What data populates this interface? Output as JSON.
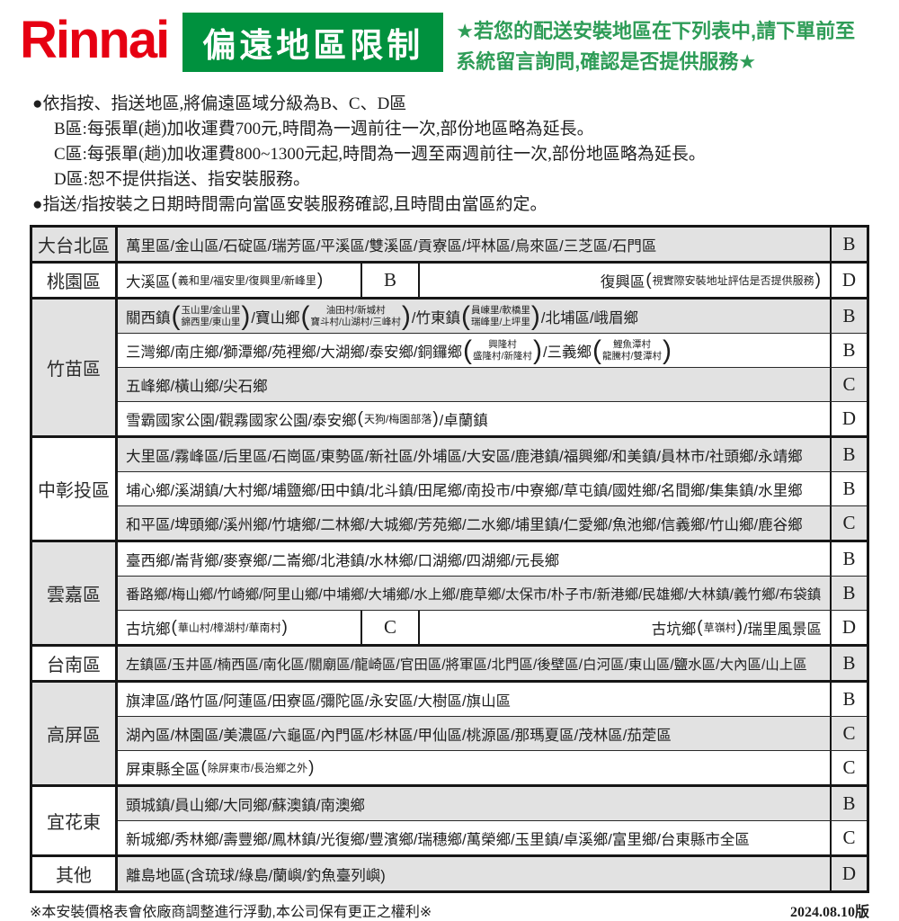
{
  "colors": {
    "brand_red": "#E60012",
    "badge_green": "#00913E",
    "note_green": "#2E9C57",
    "row_shade_grey": "#E2E2E2"
  },
  "header": {
    "logo": "Rinnai",
    "badge": "偏遠地區限制",
    "note_line1": "★若您的配送安裝地區在下列表中,請下單前至",
    "note_line2": "系統留言詢問,確認是否提供服務★"
  },
  "intro": {
    "bullet1": "●依指按、指送地區,將偏遠區域分級為B、C、D區",
    "line_b": "B區:每張單(趟)加收運費700元,時間為一週前往一次,部份地區略為延長。",
    "line_c": "C區:每張單(趟)加收運費800~1300元起,時間為一週至兩週前往一次,部份地區略為延長。",
    "line_d": "D區:恕不提供指送、指安裝服務。",
    "bullet2": "●指送/指按裝之日期時間需向當區安裝服務確認,且時間由當區約定。"
  },
  "table": {
    "groups": [
      {
        "region": "大台北區",
        "shaded": true,
        "rows": [
          {
            "cells": [
              {
                "segments": [
                  {
                    "t": "萬里區/金山區/石碇區/瑞芳區/平溪區/雙溪區/貢寮區/坪林區/烏來區/三芝區/石門區"
                  }
                ],
                "grade": "B"
              }
            ]
          }
        ]
      },
      {
        "region": "桃園區",
        "shaded": false,
        "rows": [
          {
            "cells": [
              {
                "segments": [
                  {
                    "t": "大溪區"
                  },
                  {
                    "sp": "義和里/福安里/復興里/新峰里"
                  }
                ],
                "grade": "B"
              },
              {
                "segments": [
                  {
                    "t": "復興區"
                  },
                  {
                    "sp": "視實際安裝地址評估是否提供服務"
                  }
                ],
                "grade": "D"
              }
            ]
          }
        ]
      },
      {
        "region": "竹苗區",
        "shaded": true,
        "rows": [
          {
            "cells": [
              {
                "segments": [
                  {
                    "t": "關西鎮"
                  },
                  {
                    "p": [
                      "玉山里/金山里",
                      "錦西里/東山里"
                    ]
                  },
                  {
                    "t": "/寶山鄉"
                  },
                  {
                    "p": [
                      "油田村/新城村",
                      "寶斗村/山湖村/三峰村"
                    ]
                  },
                  {
                    "t": "/竹東鎮"
                  },
                  {
                    "p": [
                      "員崠里/軟橋里",
                      "瑞峰里/上坪里"
                    ]
                  },
                  {
                    "t": "/北埔區/峨眉鄉"
                  }
                ],
                "grade": "B"
              }
            ]
          },
          {
            "cells": [
              {
                "segments": [
                  {
                    "t": "三灣鄉/南庄鄉/獅潭鄉/苑裡鄉/大湖鄉/泰安鄉/銅鑼鄉"
                  },
                  {
                    "p": [
                      "興隆村",
                      "盛隆村/新隆村"
                    ]
                  },
                  {
                    "t": "/三義鄉"
                  },
                  {
                    "p": [
                      "鯉魚潭村",
                      "龍騰村/雙潭村"
                    ]
                  }
                ],
                "grade": "B"
              }
            ]
          },
          {
            "cells": [
              {
                "segments": [
                  {
                    "t": "五峰鄉/橫山鄉/尖石鄉"
                  }
                ],
                "grade": "C"
              }
            ]
          },
          {
            "cells": [
              {
                "segments": [
                  {
                    "t": "雪霸國家公園/觀霧國家公園/泰安鄉"
                  },
                  {
                    "sp": "天狗/梅園部落"
                  },
                  {
                    "t": "/卓蘭鎮"
                  }
                ],
                "grade": "D"
              }
            ]
          }
        ]
      },
      {
        "region": "中彰投區",
        "shaded": false,
        "rows": [
          {
            "cells": [
              {
                "segments": [
                  {
                    "t": "大里區/霧峰區/后里區/石崗區/東勢區/新社區/外埔區/大安區/鹿港鎮/福興鄉/和美鎮/員林市/社頭鄉/永靖鄉"
                  }
                ],
                "grade": "B"
              }
            ]
          },
          {
            "cells": [
              {
                "segments": [
                  {
                    "t": "埔心鄉/溪湖鎮/大村鄉/埔鹽鄉/田中鎮/北斗鎮/田尾鄉/南投市/中寮鄉/草屯鎮/國姓鄉/名間鄉/集集鎮/水里鄉"
                  }
                ],
                "grade": "B"
              }
            ]
          },
          {
            "cells": [
              {
                "segments": [
                  {
                    "t": "和平區/埤頭鄉/溪州鄉/竹塘鄉/二林鄉/大城鄉/芳苑鄉/二水鄉/埔里鎮/仁愛鄉/魚池鄉/信義鄉/竹山鄉/鹿谷鄉"
                  }
                ],
                "grade": "C"
              }
            ]
          }
        ]
      },
      {
        "region": "雲嘉區",
        "shaded": true,
        "rows": [
          {
            "cells": [
              {
                "segments": [
                  {
                    "t": "臺西鄉/崙背鄉/麥寮鄉/二崙鄉/北港鎮/水林鄉/口湖鄉/四湖鄉/元長鄉"
                  }
                ],
                "grade": "B"
              }
            ]
          },
          {
            "cells": [
              {
                "segments": [
                  {
                    "t": "番路鄉/梅山鄉/竹崎鄉/阿里山鄉/中埔鄉/大埔鄉/水上鄉/鹿草鄉/太保市/朴子市/新港鄉/民雄鄉/大林鎮/義竹鄉/布袋鎮"
                  }
                ],
                "grade": "B"
              }
            ]
          },
          {
            "cells": [
              {
                "segments": [
                  {
                    "t": "古坑鄉"
                  },
                  {
                    "sp": "華山村/樟湖村/華南村"
                  }
                ],
                "grade": "C"
              },
              {
                "segments": [
                  {
                    "t": "古坑鄉"
                  },
                  {
                    "sp": "草嶺村"
                  },
                  {
                    "t": "/瑞里風景區"
                  }
                ],
                "grade": "D"
              }
            ]
          }
        ]
      },
      {
        "region": "台南區",
        "shaded": false,
        "rows": [
          {
            "cells": [
              {
                "segments": [
                  {
                    "t": "左鎮區/玉井區/楠西區/南化區/關廟區/龍崎區/官田區/將軍區/北門區/後壁區/白河區/東山區/鹽水區/大內區/山上區"
                  }
                ],
                "grade": "B"
              }
            ]
          }
        ]
      },
      {
        "region": "高屏區",
        "shaded": true,
        "rows": [
          {
            "cells": [
              {
                "segments": [
                  {
                    "t": "旗津區/路竹區/阿蓮區/田寮區/彌陀區/永安區/大樹區/旗山區"
                  }
                ],
                "grade": "B"
              }
            ]
          },
          {
            "cells": [
              {
                "segments": [
                  {
                    "t": "湖內區/林園區/美濃區/六龜區/內門區/杉林區/甲仙區/桃源區/那瑪夏區/茂林區/茄萣區"
                  }
                ],
                "grade": "C"
              }
            ]
          },
          {
            "cells": [
              {
                "segments": [
                  {
                    "t": "屏東縣全區"
                  },
                  {
                    "sp": "除屏東市/長治鄉之外"
                  }
                ],
                "grade": "C"
              }
            ]
          }
        ]
      },
      {
        "region": "宜花東",
        "shaded": false,
        "rows": [
          {
            "cells": [
              {
                "segments": [
                  {
                    "t": "頭城鎮/員山鄉/大同鄉/蘇澳鎮/南澳鄉"
                  }
                ],
                "grade": "B"
              }
            ]
          },
          {
            "cells": [
              {
                "segments": [
                  {
                    "t": "新城鄉/秀林鄉/壽豐鄉/鳳林鎮/光復鄉/豐濱鄉/瑞穗鄉/萬榮鄉/玉里鎮/卓溪鄉/富里鄉/台東縣市全區"
                  }
                ],
                "grade": "C"
              }
            ]
          }
        ]
      },
      {
        "region": "其他",
        "shaded": false,
        "rows": [
          {
            "cells": [
              {
                "segments": [
                  {
                    "t": "離島地區(含琉球/綠島/蘭嶼/釣魚臺列嶼)"
                  }
                ],
                "grade": "D"
              }
            ]
          }
        ]
      }
    ]
  },
  "footer": {
    "note": "※本安裝價格表會依廠商調整進行浮動,本公司保有更正之權利※",
    "version": "2024.08.10版"
  }
}
